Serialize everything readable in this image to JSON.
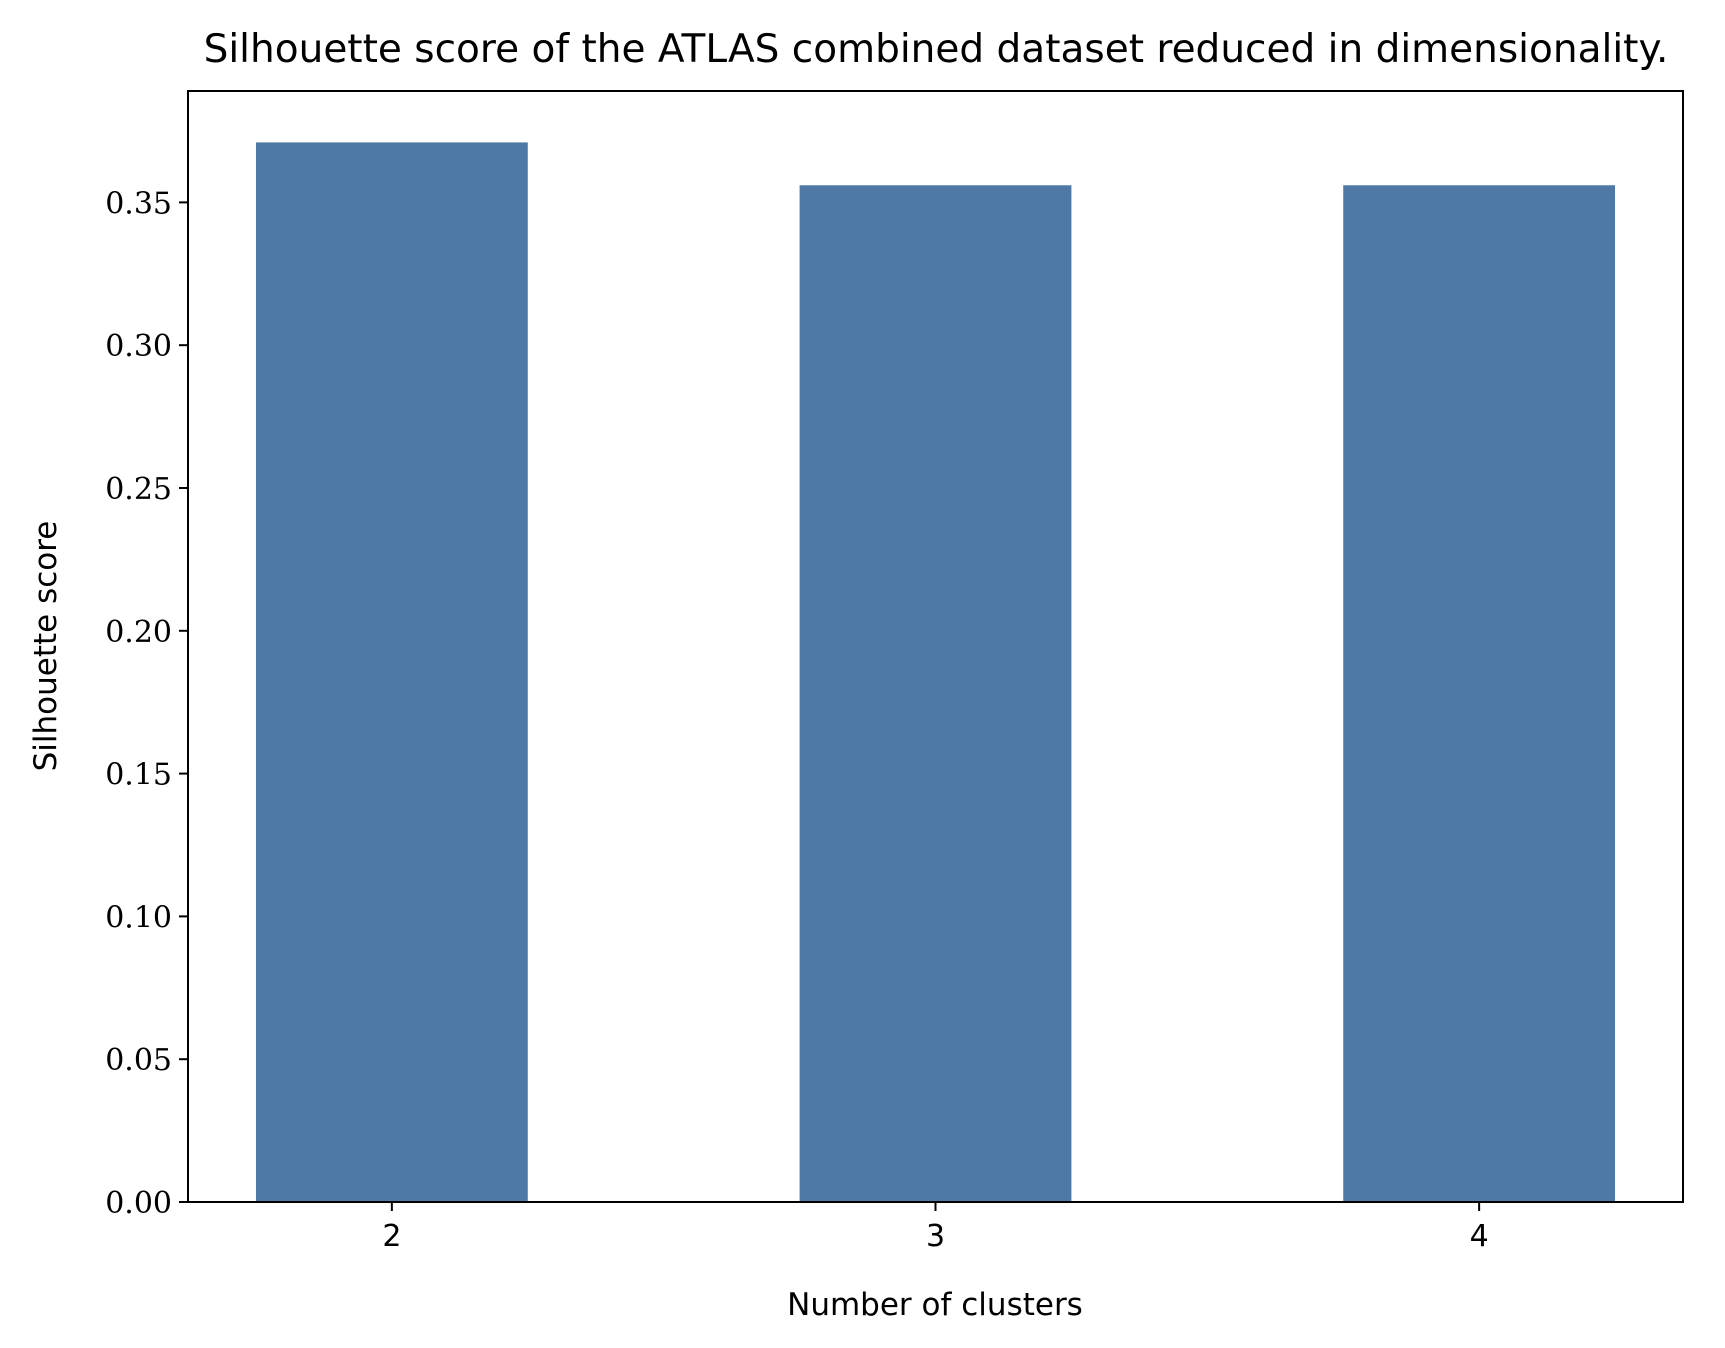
{
  "chart_data": {
    "type": "bar",
    "title": "Silhouette score of the ATLAS combined dataset reduced in dimensionality.",
    "xlabel": "Number of clusters",
    "ylabel": "Silhouette score",
    "categories": [
      "2",
      "3",
      "4"
    ],
    "values": [
      0.371,
      0.356,
      0.356
    ],
    "ylim": [
      0,
      0.389
    ],
    "yticks": [
      "0.00",
      "0.05",
      "0.10",
      "0.15",
      "0.20",
      "0.25",
      "0.30",
      "0.35"
    ],
    "grid": false,
    "legend": "none",
    "bar_color": "#4e79a7",
    "axis_color": "#000000"
  }
}
